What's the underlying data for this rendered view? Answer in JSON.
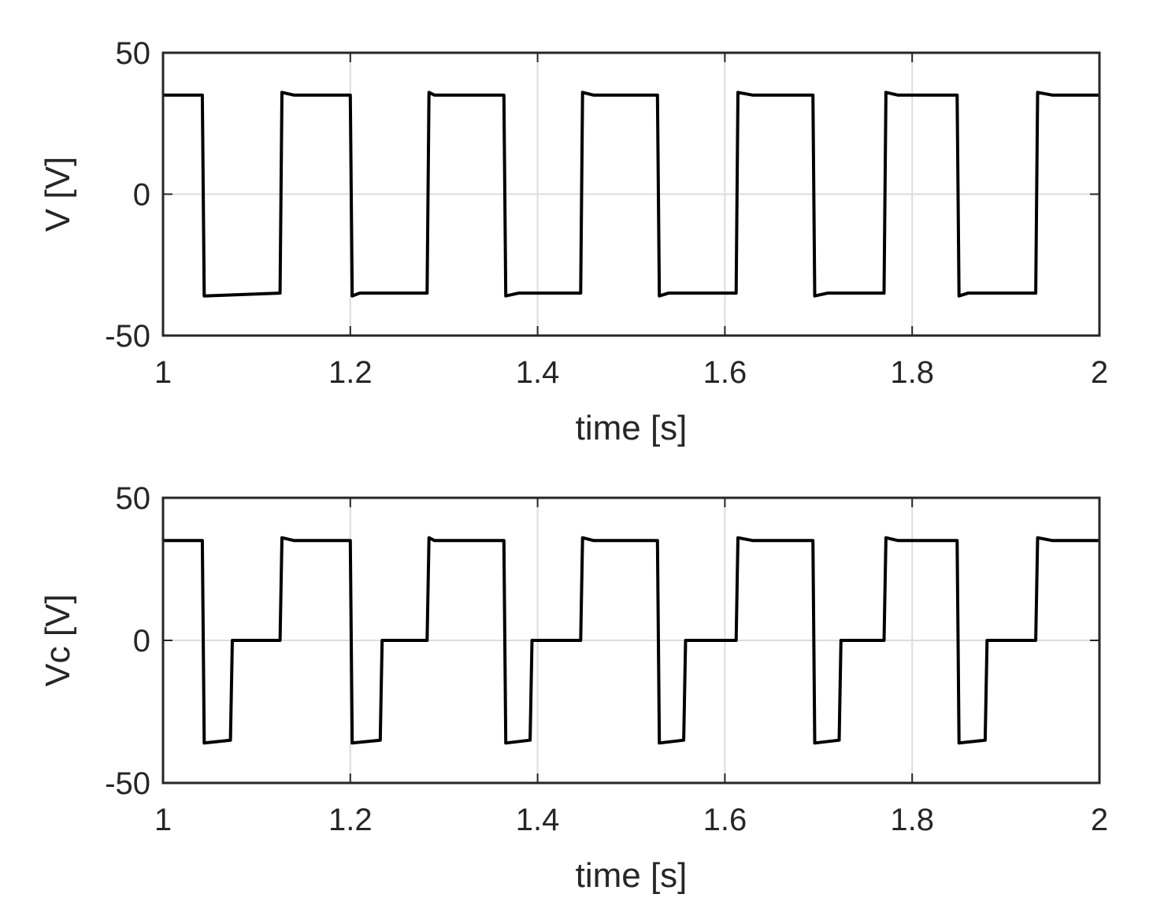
{
  "chart_data": [
    {
      "type": "line",
      "xlabel": "time [s]",
      "ylabel": "V [V]",
      "xlim": [
        1,
        2
      ],
      "ylim": [
        -50,
        50
      ],
      "xticks": [
        1,
        1.2,
        1.4,
        1.6,
        1.8,
        2
      ],
      "xtick_labels": [
        "1",
        "1.2",
        "1.4",
        "1.6",
        "1.8",
        "2"
      ],
      "yticks": [
        -50,
        0,
        50
      ],
      "ytick_labels": [
        "-50",
        "0",
        "50"
      ],
      "grid": true,
      "color": "#000000",
      "series": [
        {
          "x": [
            1.0,
            1.042,
            1.044,
            1.125,
            1.127,
            1.14,
            1.2,
            1.202,
            1.21,
            1.282,
            1.284,
            1.29,
            1.364,
            1.366,
            1.38,
            1.446,
            1.448,
            1.46,
            1.528,
            1.53,
            1.54,
            1.612,
            1.614,
            1.63,
            1.694,
            1.696,
            1.71,
            1.77,
            1.772,
            1.785,
            1.848,
            1.85,
            1.86,
            1.932,
            1.934,
            1.95,
            2.0
          ],
          "y": [
            35,
            35,
            -36,
            -35,
            36,
            35,
            35,
            -36,
            -35,
            -35,
            36,
            35,
            35,
            -36,
            -35,
            -35,
            36,
            35,
            35,
            -36,
            -35,
            -35,
            36,
            35,
            35,
            -36,
            -35,
            -35,
            36,
            35,
            35,
            -36,
            -35,
            -35,
            36,
            35,
            35
          ]
        }
      ]
    },
    {
      "type": "line",
      "xlabel": "time [s]",
      "ylabel": "Vc  [V]",
      "xlim": [
        1,
        2
      ],
      "ylim": [
        -50,
        50
      ],
      "xticks": [
        1,
        1.2,
        1.4,
        1.6,
        1.8,
        2
      ],
      "xtick_labels": [
        "1",
        "1.2",
        "1.4",
        "1.6",
        "1.8",
        "2"
      ],
      "yticks": [
        -50,
        0,
        50
      ],
      "ytick_labels": [
        "-50",
        "0",
        "50"
      ],
      "grid": true,
      "color": "#000000",
      "series": [
        {
          "x": [
            1.0,
            1.042,
            1.044,
            1.072,
            1.074,
            1.125,
            1.127,
            1.14,
            1.2,
            1.202,
            1.232,
            1.234,
            1.282,
            1.284,
            1.29,
            1.364,
            1.366,
            1.392,
            1.394,
            1.446,
            1.448,
            1.46,
            1.528,
            1.53,
            1.556,
            1.558,
            1.612,
            1.614,
            1.63,
            1.694,
            1.696,
            1.722,
            1.724,
            1.77,
            1.772,
            1.785,
            1.848,
            1.85,
            1.878,
            1.88,
            1.932,
            1.934,
            1.95,
            2.0
          ],
          "y": [
            35,
            35,
            -36,
            -35,
            0,
            0,
            36,
            35,
            35,
            -36,
            -35,
            0,
            0,
            36,
            35,
            35,
            -36,
            -35,
            0,
            0,
            36,
            35,
            35,
            -36,
            -35,
            0,
            0,
            36,
            35,
            35,
            -36,
            -35,
            0,
            0,
            36,
            35,
            35,
            -36,
            -35,
            0,
            0,
            36,
            35,
            35
          ]
        }
      ]
    }
  ]
}
